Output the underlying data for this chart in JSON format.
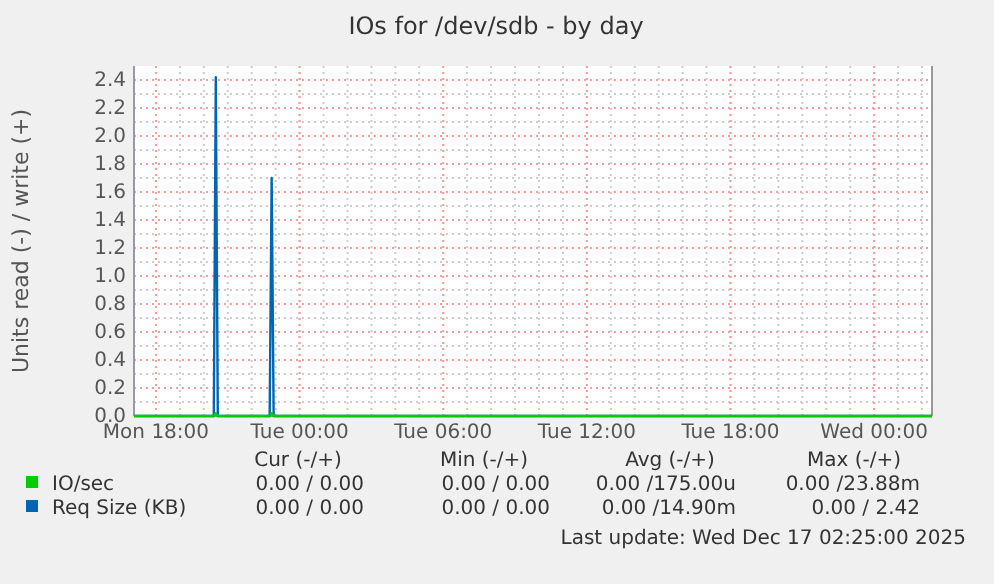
{
  "chart_data": {
    "type": "line",
    "title": "IOs for /dev/sdb - by day",
    "ylabel": "Units read (-) / write (+)",
    "xlim": [
      "2025-12-15T17:05",
      "2025-12-17T02:25"
    ],
    "xticks": [
      {
        "value": "2025-12-15T18:00",
        "label": "Mon 18:00"
      },
      {
        "value": "2025-12-16T00:00",
        "label": "Tue 00:00"
      },
      {
        "value": "2025-12-16T06:00",
        "label": "Tue 06:00"
      },
      {
        "value": "2025-12-16T12:00",
        "label": "Tue 12:00"
      },
      {
        "value": "2025-12-16T18:00",
        "label": "Tue 18:00"
      },
      {
        "value": "2025-12-17T00:00",
        "label": "Wed 00:00"
      }
    ],
    "ylim": [
      0,
      2.5
    ],
    "yticks": [
      {
        "value": 0,
        "label": "0.0"
      },
      {
        "value": 0.2,
        "label": "0.2"
      },
      {
        "value": 0.4,
        "label": "0.4"
      },
      {
        "value": 0.6,
        "label": "0.6"
      },
      {
        "value": 0.8,
        "label": "0.8"
      },
      {
        "value": 1,
        "label": "1.0"
      },
      {
        "value": 1.2,
        "label": "1.2"
      },
      {
        "value": 1.4,
        "label": "1.4"
      },
      {
        "value": 1.6,
        "label": "1.6"
      },
      {
        "value": 1.8,
        "label": "1.8"
      },
      {
        "value": 2,
        "label": "2.0"
      },
      {
        "value": 2.2,
        "label": "2.2"
      },
      {
        "value": 2.4,
        "label": "2.4"
      }
    ],
    "grid": true,
    "legend": "bottom",
    "marker": "none",
    "line_style": "solid",
    "x": [
      "2025-12-15T17:05",
      "2025-12-15T20:25",
      "2025-12-15T20:30",
      "2025-12-15T20:35",
      "2025-12-15T22:45",
      "2025-12-15T22:50",
      "2025-12-15T22:55",
      "2025-12-17T02:25"
    ],
    "series": [
      {
        "name": "IO/sec",
        "color": "#00cc00",
        "values": [
          0,
          0,
          0.02,
          0,
          0,
          0.02,
          0,
          0
        ]
      },
      {
        "name": "Req Size (KB)",
        "color": "#0066b3",
        "values": [
          0,
          0,
          2.42,
          0,
          0,
          1.7,
          0,
          0
        ]
      }
    ],
    "annotations": [
      "Cur (-/+)",
      "Min (-/+)",
      "Avg (-/+)",
      "Max (-/+)",
      "0.00 / 0.00",
      "0.00 / 0.00",
      "0.00 /175.00u",
      "0.00 /23.88m",
      "0.00 / 0.00",
      "0.00 / 0.00",
      "0.00 /14.90m",
      "0.00 / 2.42",
      "Last update: Wed Dec 17 02:25:00 2025"
    ]
  }
}
